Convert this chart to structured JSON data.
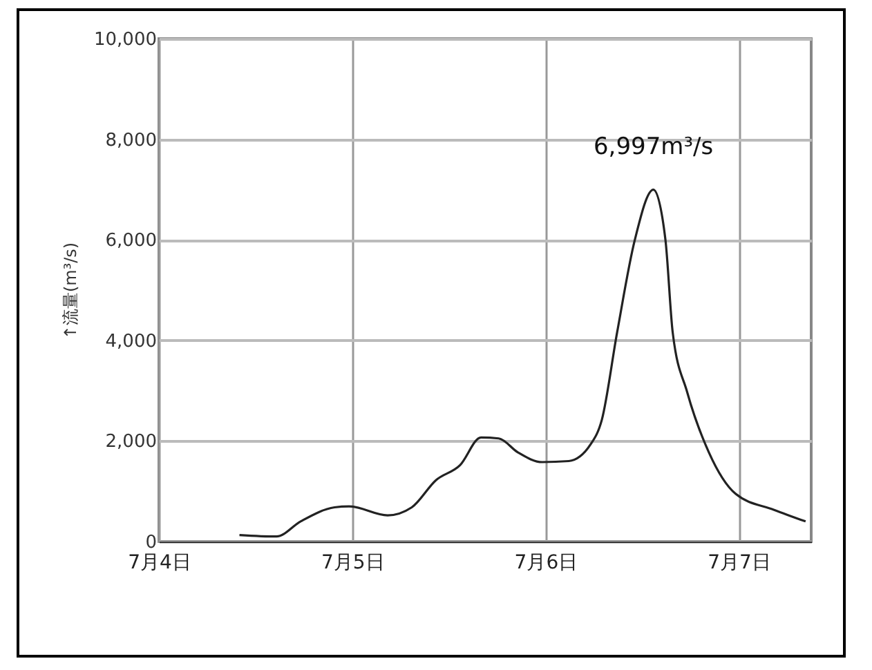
{
  "chart_data": {
    "type": "line",
    "ylabel": "↑流量(m³/s)",
    "x": [
      "--07-04T10:00",
      "--07-04T14:36",
      "--07-04T17:36",
      "--07-04T21:48",
      "--07-04T23:36",
      "--07-05T04:24",
      "--07-05T07:24",
      "--07-05T10:24",
      "--07-05T13:24",
      "--07-05T16:00",
      "--07-05T18:12",
      "--07-05T20:36",
      "--07-05T23:36",
      "--07-06T02:54",
      "--07-06T05:36",
      "--07-06T07:00",
      "--07-06T08:54",
      "--07-06T11:06",
      "--07-06T13:24",
      "--07-06T14:54",
      "--07-06T15:48",
      "--07-06T17:36",
      "--07-06T20:18",
      "--07-06T23:36",
      "--07-07T04:24",
      "--07-07T08:18"
    ],
    "series": [
      {
        "color": "#222222",
        "values": [
          130,
          100,
          400,
          680,
          700,
          520,
          680,
          1220,
          1520,
          2070,
          2050,
          1770,
          1580,
          1600,
          1930,
          2420,
          4160,
          6000,
          6997,
          6000,
          4160,
          2970,
          1770,
          950,
          630,
          400
        ]
      }
    ],
    "xlim": [
      "--07-04",
      "--07-07T09:00"
    ],
    "xticks": [
      {
        "value": "--07-04",
        "label": "7月4日"
      },
      {
        "value": "--07-05",
        "label": "7月5日"
      },
      {
        "value": "--07-06",
        "label": "7月6日"
      },
      {
        "value": "--07-07",
        "label": "7月7日"
      }
    ],
    "ylim": [
      0,
      10000
    ],
    "yticks": [
      {
        "value": 0,
        "label": "0"
      },
      {
        "value": 2000,
        "label": "2,000"
      },
      {
        "value": 4000,
        "label": "4,000"
      },
      {
        "value": 6000,
        "label": "6,000"
      },
      {
        "value": 8000,
        "label": "8,000"
      },
      {
        "value": 10000,
        "label": "10,000"
      }
    ],
    "grid": true,
    "line_style": "solid",
    "marker": "none",
    "annotations": [
      {
        "text": "6,997m³/s",
        "x": "--07-06T13:24",
        "y": 6997
      }
    ]
  }
}
